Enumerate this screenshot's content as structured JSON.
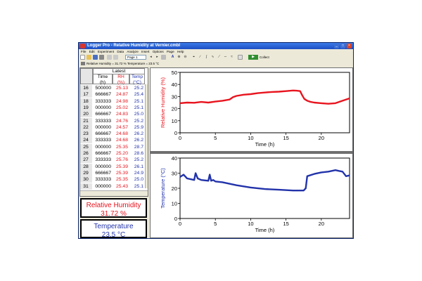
{
  "window": {
    "title": "Logger Pro - Relative Humidity at Vernier.cmbl",
    "controls": [
      "_",
      "□",
      "×"
    ]
  },
  "menu": [
    "File",
    "Edit",
    "Experiment",
    "Data",
    "Analyze",
    "Insert",
    "Options",
    "Page",
    "Help"
  ],
  "toolbar": {
    "page_selector": "Page 1",
    "collect_label": "Collect",
    "collect_button": "▶"
  },
  "status": {
    "readout": "Relative Humidity = 31.72 %  Temperature = 23.5 °C"
  },
  "table": {
    "group_header": "Latest",
    "columns": [
      {
        "name": "Time",
        "unit": "(h)",
        "color": "#000000"
      },
      {
        "name": "RH",
        "unit": "(%)",
        "color": "#e8141e"
      },
      {
        "name": "Temp",
        "unit": "(°C)",
        "color": "#2233aa"
      }
    ],
    "rows": [
      {
        "n": "16",
        "time": "500000",
        "rh": "25.13",
        "temp": "25.2"
      },
      {
        "n": "17",
        "time": "666667",
        "rh": "24.87",
        "temp": "25.4"
      },
      {
        "n": "18",
        "time": "333333",
        "rh": "24.98",
        "temp": "25.1"
      },
      {
        "n": "19",
        "time": "000000",
        "rh": "25.02",
        "temp": "25.1"
      },
      {
        "n": "20",
        "time": "666667",
        "rh": "24.83",
        "temp": "25.0"
      },
      {
        "n": "21",
        "time": "333333",
        "rh": "24.76",
        "temp": "25.2"
      },
      {
        "n": "22",
        "time": "000000",
        "rh": "24.57",
        "temp": "25.9"
      },
      {
        "n": "23",
        "time": "666667",
        "rh": "24.68",
        "temp": "26.2"
      },
      {
        "n": "24",
        "time": "333333",
        "rh": "24.68",
        "temp": "26.2"
      },
      {
        "n": "25",
        "time": "000000",
        "rh": "25.35",
        "temp": "28.7"
      },
      {
        "n": "26",
        "time": "666667",
        "rh": "25.20",
        "temp": "28.6"
      },
      {
        "n": "27",
        "time": "333333",
        "rh": "25.76",
        "temp": "25.2"
      },
      {
        "n": "28",
        "time": "000000",
        "rh": "25.39",
        "temp": "26.1"
      },
      {
        "n": "29",
        "time": "666667",
        "rh": "25.39",
        "temp": "24.9"
      },
      {
        "n": "30",
        "time": "333333",
        "rh": "25.35",
        "temp": "25.0"
      },
      {
        "n": "31",
        "time": "000000",
        "rh": "25.43",
        "temp": "25.1"
      }
    ]
  },
  "meters": {
    "rh": {
      "title": "Relative Humidity",
      "value": "31.72 %",
      "color": "#e8141e"
    },
    "temp": {
      "title": "Temperature",
      "value": "23.5 °C",
      "color": "#2233aa"
    }
  },
  "chart_data": [
    {
      "type": "line",
      "title": "",
      "xlabel": "Time (h)",
      "ylabel": "Relative Humidity (%)",
      "xlim": [
        0,
        24
      ],
      "ylim": [
        0,
        50
      ],
      "xticks": [
        0,
        5,
        10,
        15,
        20
      ],
      "yticks": [
        0,
        10,
        20,
        30,
        40,
        50
      ],
      "series": [
        {
          "color": "#e8141e",
          "x": [
            0,
            1,
            2,
            3,
            4,
            5,
            6,
            7,
            7.5,
            8,
            9,
            10,
            11,
            12,
            13,
            14,
            15,
            16,
            16.5,
            17,
            17.3,
            17.6,
            18,
            18.5,
            19,
            20,
            21,
            22,
            23,
            24
          ],
          "y": [
            24.5,
            25,
            24.8,
            25.5,
            25,
            25.8,
            26.5,
            27.5,
            29.5,
            30.5,
            31.5,
            32,
            32.8,
            33.3,
            33.8,
            34,
            34.5,
            35,
            34.8,
            34.5,
            31,
            28,
            26.5,
            25.5,
            25,
            24.5,
            24,
            24.5,
            26.5,
            28.5
          ]
        }
      ]
    },
    {
      "type": "line",
      "title": "",
      "xlabel": "Time (h)",
      "ylabel": "Temperature (°C)",
      "xlim": [
        0,
        24
      ],
      "ylim": [
        0,
        40
      ],
      "xticks": [
        0,
        5,
        10,
        15,
        20
      ],
      "yticks": [
        0,
        10,
        20,
        30,
        40
      ],
      "series": [
        {
          "color": "#2233aa",
          "x": [
            0,
            0.5,
            1,
            1.5,
            2,
            2.2,
            2.5,
            3,
            4,
            4.2,
            4.4,
            4.7,
            5,
            6,
            7,
            8,
            10,
            12,
            14,
            16,
            17,
            17.5,
            17.8,
            18,
            19,
            20,
            21,
            22,
            22.5,
            23,
            23.5,
            24
          ],
          "y": [
            27.5,
            29,
            26.5,
            26,
            25.5,
            30,
            26.5,
            25.5,
            25,
            29,
            25,
            25.5,
            24.5,
            24,
            23,
            22,
            20.5,
            19.5,
            19,
            18.5,
            18.5,
            18.5,
            20,
            28,
            29.5,
            30.5,
            31,
            32,
            31.5,
            31,
            28,
            28.5
          ]
        }
      ]
    }
  ]
}
